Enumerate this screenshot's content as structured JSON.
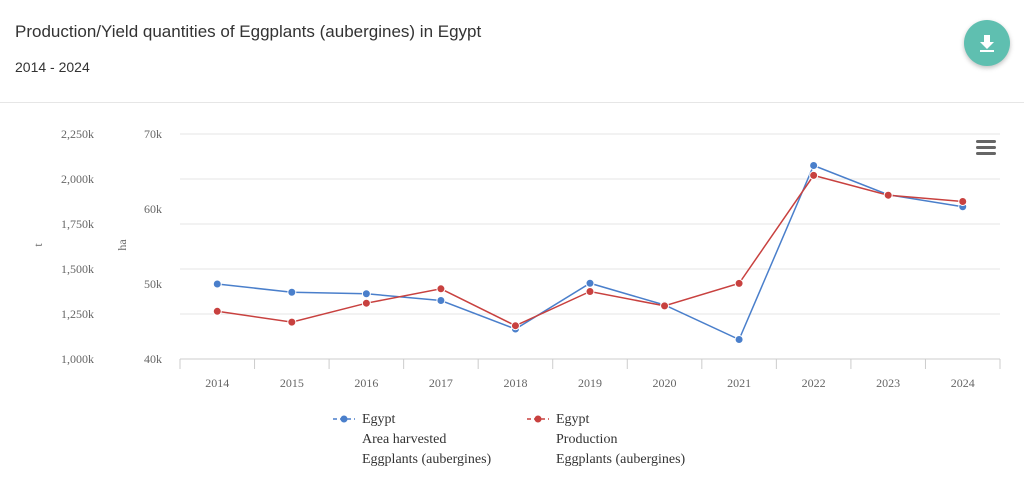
{
  "header": {
    "title": "Production/Yield quantities of Eggplants (aubergines) in Egypt",
    "subtitle": "2014 - 2024",
    "download_icon": "download-icon",
    "menu_icon": "hamburger-menu-icon"
  },
  "chart_data": {
    "type": "line",
    "categories": [
      "2014",
      "2015",
      "2016",
      "2017",
      "2018",
      "2019",
      "2020",
      "2021",
      "2022",
      "2023",
      "2024"
    ],
    "left_axis": {
      "label": "t",
      "range": [
        1000000,
        2250000
      ],
      "ticks": [
        "1,000k",
        "1,250k",
        "1,500k",
        "1,750k",
        "2,000k",
        "2,250k"
      ]
    },
    "right_axis": {
      "label": "ha",
      "range": [
        40000,
        70000
      ],
      "ticks": [
        "40k",
        "50k",
        "60k",
        "70k"
      ]
    },
    "series": [
      {
        "name": "Egypt",
        "element": "Area harvested",
        "item": "Eggplants (aubergines)",
        "color": "#4a7fcb",
        "axis": "ha",
        "values": [
          50000,
          48900,
          48700,
          47800,
          44000,
          50100,
          47200,
          42600,
          65800,
          61900,
          60300
        ]
      },
      {
        "name": "Egypt",
        "element": "Production",
        "item": "Eggplants (aubergines)",
        "color": "#c8413f",
        "axis": "t",
        "values": [
          1265000,
          1205000,
          1310000,
          1390000,
          1185000,
          1375000,
          1295000,
          1420000,
          2020000,
          1910000,
          1875000
        ]
      }
    ],
    "grid": true,
    "legend_position": "bottom"
  }
}
